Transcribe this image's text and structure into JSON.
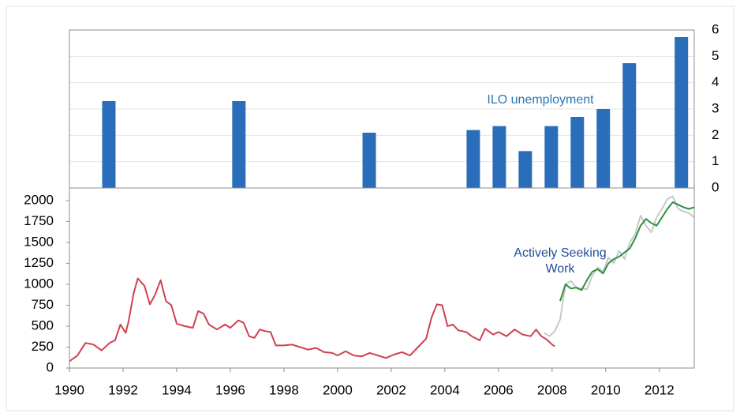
{
  "chart_data": [
    {
      "type": "bar",
      "annotation": "ILO unemployment",
      "annotation_color": "#2e75b6",
      "color": "#2a6ebb",
      "x": [
        1991.47,
        1996.32,
        2001.18,
        2005.06,
        2006.03,
        2007.0,
        2007.97,
        2008.94,
        2009.91,
        2010.88,
        2012.82
      ],
      "values": [
        3.3,
        3.3,
        2.1,
        2.2,
        2.35,
        1.4,
        2.35,
        2.7,
        3.0,
        4.74,
        5.73
      ],
      "xlim": [
        1990,
        2013.3
      ],
      "ylim": [
        0,
        6
      ],
      "yticks": [
        0,
        1,
        2,
        3,
        4,
        5,
        6
      ],
      "y_axis_side": "right",
      "grid": true
    },
    {
      "type": "line",
      "annotation": "Actively Seeking Work",
      "annotation_color": "#1f4e9c",
      "xlim": [
        1990,
        2013.3
      ],
      "xticks": [
        1990,
        1992,
        1994,
        1996,
        1998,
        2000,
        2002,
        2004,
        2006,
        2008,
        2010,
        2012
      ],
      "ylim": [
        0,
        2150
      ],
      "yticks": [
        0,
        250,
        500,
        750,
        1000,
        1250,
        1500,
        1750,
        2000
      ],
      "grid": false,
      "series": [
        {
          "color": "#d0404f",
          "x": [
            1990.0,
            1990.3,
            1990.6,
            1990.9,
            1991.2,
            1991.5,
            1991.7,
            1991.9,
            1992.1,
            1992.2,
            1992.4,
            1992.55,
            1992.8,
            1993.0,
            1993.2,
            1993.4,
            1993.6,
            1993.8,
            1994.0,
            1994.3,
            1994.6,
            1994.8,
            1995.0,
            1995.2,
            1995.5,
            1995.8,
            1996.0,
            1996.3,
            1996.5,
            1996.7,
            1996.9,
            1997.1,
            1997.3,
            1997.5,
            1997.7,
            1998.0,
            1998.3,
            1998.6,
            1998.9,
            1999.2,
            1999.5,
            1999.8,
            2000.0,
            2000.3,
            2000.6,
            2000.9,
            2001.2,
            2001.5,
            2001.8,
            2002.1,
            2002.4,
            2002.7,
            2003.0,
            2003.3,
            2003.5,
            2003.7,
            2003.9,
            2004.1,
            2004.3,
            2004.5,
            2004.8,
            2005.0,
            2005.3,
            2005.5,
            2005.8,
            2006.0,
            2006.3,
            2006.6,
            2006.9,
            2007.2,
            2007.4,
            2007.6,
            2007.8,
            2008.0,
            2008.1
          ],
          "values": [
            80,
            150,
            300,
            280,
            210,
            300,
            330,
            520,
            420,
            550,
            900,
            1070,
            980,
            760,
            880,
            1050,
            800,
            750,
            530,
            500,
            480,
            680,
            650,
            520,
            460,
            520,
            480,
            570,
            540,
            380,
            360,
            460,
            440,
            430,
            270,
            270,
            280,
            250,
            220,
            240,
            190,
            180,
            150,
            200,
            150,
            140,
            180,
            150,
            120,
            160,
            190,
            150,
            250,
            350,
            600,
            760,
            750,
            500,
            520,
            450,
            430,
            380,
            330,
            470,
            400,
            430,
            380,
            460,
            400,
            380,
            460,
            380,
            340,
            280,
            260
          ]
        },
        {
          "color": "#c8c8c8",
          "x": [
            2007.7,
            2007.9,
            2008.1,
            2008.3,
            2008.5,
            2008.7,
            2008.9,
            2009.1,
            2009.3,
            2009.5,
            2009.7,
            2009.9,
            2010.1,
            2010.3,
            2010.5,
            2010.7,
            2010.9,
            2011.1,
            2011.3,
            2011.5,
            2011.7,
            2011.9,
            2012.1,
            2012.3,
            2012.5,
            2012.7,
            2012.9,
            2013.1,
            2013.3
          ],
          "values": [
            420,
            380,
            440,
            580,
            1000,
            1040,
            960,
            950,
            940,
            1100,
            1200,
            1150,
            1320,
            1250,
            1400,
            1300,
            1500,
            1600,
            1820,
            1700,
            1620,
            1800,
            1900,
            2020,
            2050,
            1900,
            1870,
            1850,
            1800
          ]
        },
        {
          "color": "#2f8f3f",
          "x": [
            2008.3,
            2008.5,
            2008.7,
            2008.9,
            2009.1,
            2009.3,
            2009.5,
            2009.7,
            2009.9,
            2010.1,
            2010.3,
            2010.5,
            2010.7,
            2010.9,
            2011.1,
            2011.3,
            2011.5,
            2011.7,
            2011.9,
            2012.1,
            2012.3,
            2012.5,
            2012.7,
            2012.9,
            2013.1,
            2013.3
          ],
          "values": [
            800,
            1000,
            950,
            960,
            930,
            1050,
            1150,
            1180,
            1130,
            1250,
            1300,
            1330,
            1380,
            1430,
            1550,
            1700,
            1780,
            1730,
            1700,
            1800,
            1900,
            1980,
            1950,
            1920,
            1900,
            1920
          ]
        }
      ]
    }
  ]
}
